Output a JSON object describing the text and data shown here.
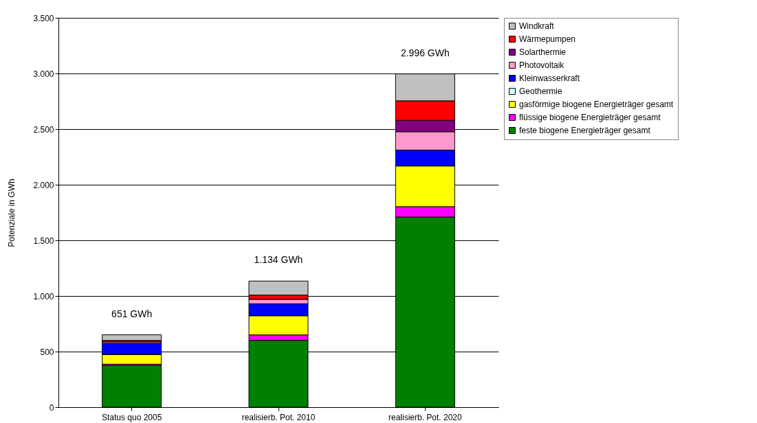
{
  "chart_data": {
    "type": "bar",
    "stacked": true,
    "ylabel": "Potenziale in GWh",
    "categories": [
      "Status quo 2005",
      "realisierb. Pot. 2010",
      "realisierb. Pot. 2020"
    ],
    "series": [
      {
        "name": "feste biogene Energieträger gesamt",
        "color": "#008000",
        "values": [
          375,
          601,
          1710
        ]
      },
      {
        "name": "flüssige biogene Energieträger gesamt",
        "color": "#ff00ff",
        "values": [
          12,
          49,
          93
        ]
      },
      {
        "name": "gasförmige biogene Energieträger gesamt",
        "color": "#ffff00",
        "values": [
          88,
          173,
          366
        ]
      },
      {
        "name": "Geothermie",
        "color": "#ccffff",
        "values": [
          0,
          0,
          0
        ]
      },
      {
        "name": "Kleinwasserkraft",
        "color": "#0000ff",
        "values": [
          99,
          107,
          142
        ]
      },
      {
        "name": "Photovoltaik",
        "color": "#ff99cc",
        "values": [
          13,
          41,
          165
        ]
      },
      {
        "name": "Solarthermie",
        "color": "#800080",
        "values": [
          null,
          0,
          103
        ]
      },
      {
        "name": "Wärmepumpen",
        "color": "#ff0000",
        "values": [
          13,
          37,
          175
        ]
      },
      {
        "name": "Windkraft",
        "color": "#c0c0c0",
        "values": [
          51,
          126,
          242
        ]
      }
    ],
    "totals": [
      "651 GWh",
      "1.134 GWh",
      "2.996 GWh"
    ],
    "ylim": [
      0,
      3500
    ],
    "yticks": [
      0,
      500,
      {
        "value": 1000,
        "label": "1.000"
      },
      {
        "value": 1500,
        "label": "1.500"
      },
      {
        "value": 2000,
        "label": "2.000"
      },
      {
        "value": 2500,
        "label": "2.500"
      },
      {
        "value": 3000,
        "label": "3.000"
      },
      {
        "value": 3500,
        "label": "3.500"
      }
    ],
    "grid": "y",
    "legend": "right"
  }
}
